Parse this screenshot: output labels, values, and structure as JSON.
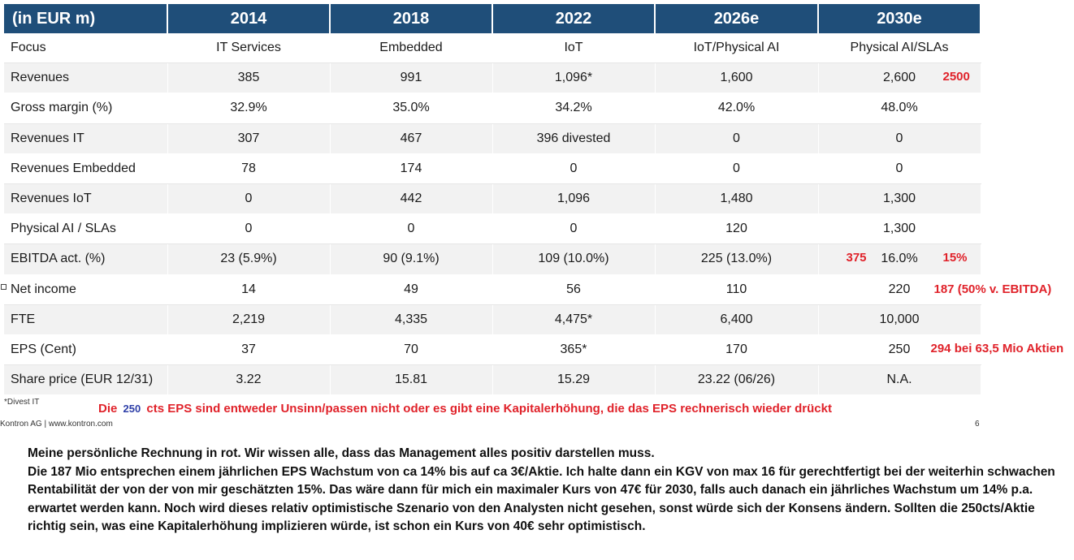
{
  "table": {
    "headers": [
      "(in EUR m)",
      "2014",
      "2018",
      "2022",
      "2026e",
      "2030e"
    ],
    "rows": [
      [
        "Focus",
        "IT Services",
        "Embedded",
        "IoT",
        "IoT/Physical AI",
        "Physical AI/SLAs"
      ],
      [
        "Revenues",
        "385",
        "991",
        "1,096*",
        "1,600",
        "2,600"
      ],
      [
        "Gross margin (%)",
        "32.9%",
        "35.0%",
        "34.2%",
        "42.0%",
        "48.0%"
      ],
      [
        "Revenues IT",
        "307",
        "467",
        "396 divested",
        "0",
        "0"
      ],
      [
        "Revenues Embedded",
        "78",
        "174",
        "0",
        "0",
        "0"
      ],
      [
        "Revenues IoT",
        "0",
        "442",
        "1,096",
        "1,480",
        "1,300"
      ],
      [
        "Physical AI / SLAs",
        "0",
        "0",
        "0",
        "120",
        "1,300"
      ],
      [
        "EBITDA act. (%)",
        "23 (5.9%)",
        "90 (9.1%)",
        "109 (10.0%)",
        "225 (13.0%)",
        "16.0%"
      ],
      [
        "Net income",
        "14",
        "49",
        "56",
        "110",
        "220"
      ],
      [
        "FTE",
        "2,219",
        "4,335",
        "4,475*",
        "6,400",
        "10,000"
      ],
      [
        "EPS (Cent)",
        "37",
        "70",
        "365*",
        "170",
        "250"
      ],
      [
        "Share price (EUR 12/31)",
        "3.22",
        "15.81",
        "15.29",
        "23.22 (06/26)",
        "N.A."
      ]
    ]
  },
  "annotations": {
    "revenues_2500": "2500",
    "ebitda_375": "375",
    "ebitda_15pct": "15%",
    "net_income_note": "187 (50% v. EBITDA)",
    "eps_note": "294 bei 63,5 Mio Aktien"
  },
  "footnote": "*Divest IT",
  "red_note": {
    "prefix": "Die",
    "blue": "250",
    "suffix": "cts EPS sind entweder Unsinn/passen nicht oder es gibt eine Kapitalerhöhung, die das EPS rechnerisch wieder drückt"
  },
  "footer": {
    "company": "Kontron AG | www.kontron.com",
    "page": "6"
  },
  "comment": [
    "Meine persönliche Rechnung in rot. Wir wissen alle, dass das Management alles positiv darstellen muss.",
    "Die 187 Mio entsprechen einem jährlichen EPS Wachstum von ca 14% bis auf ca 3€/Aktie. Ich halte dann ein KGV von max 16 für gerechtfertigt bei der weiterhin schwachen Rentabilität der von der von mir geschätzten 15%.  Das wäre dann für mich ein maximaler Kurs von 47€ für 2030, falls auch danach ein jährliches Wachstum um 14% p.a.  erwartet werden kann. Noch wird dieses relativ optimistische Szenario von den Analysten nicht gesehen, sonst würde sich der Konsens ändern. Sollten die 250cts/Aktie richtig sein, was eine Kapitalerhöhung implizieren würde, ist schon ein Kurs von 40€ sehr optimistisch."
  ],
  "colors": {
    "header_bg": "#1f4e79",
    "annotation_red": "#e0222a",
    "annotation_blue": "#2e3fa8"
  }
}
